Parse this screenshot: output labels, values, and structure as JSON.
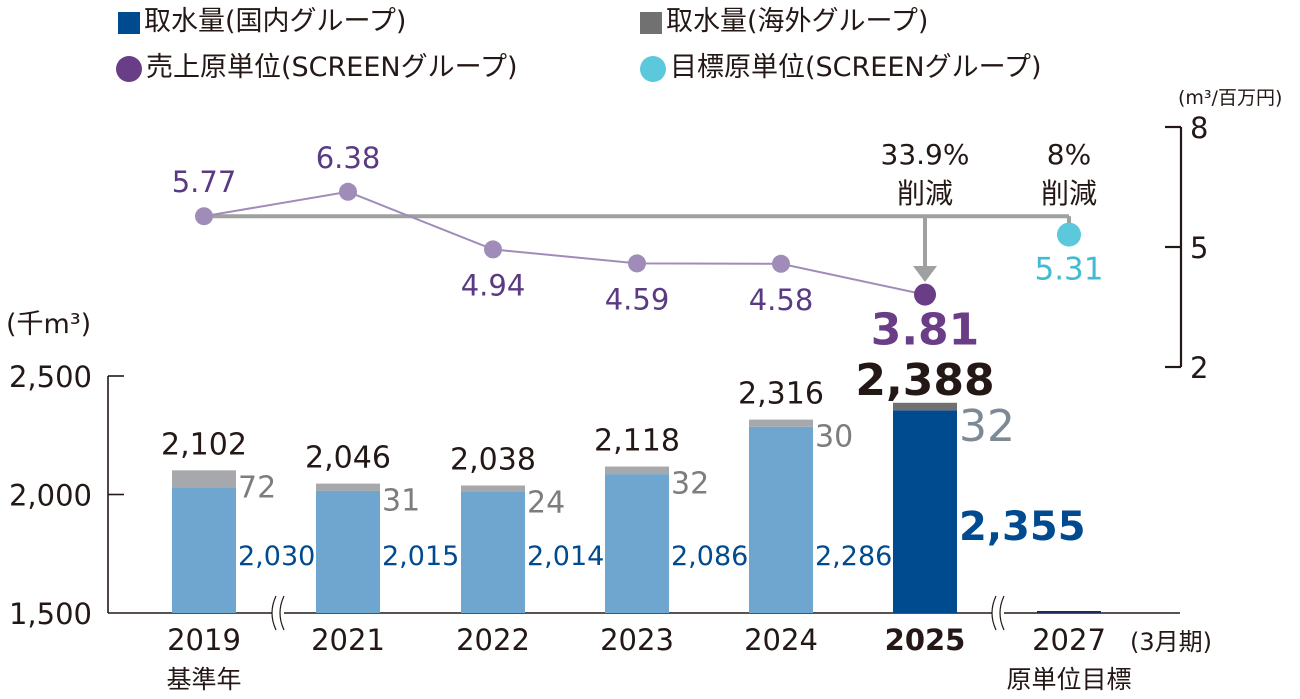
{
  "legend": [
    {
      "label": "取水量(国内グループ)",
      "color": "#004a8f",
      "shape": "square"
    },
    {
      "label": "取水量(海外グループ)",
      "color": "#727171",
      "shape": "square"
    },
    {
      "label": "売上原単位(SCREENグループ)",
      "color": "#6a3d87",
      "shape": "circle"
    },
    {
      "label": "目標原単位(SCREENグループ)",
      "color": "#5bc8dc",
      "shape": "circle"
    }
  ],
  "chart_data": {
    "type": "bar",
    "categories": [
      "2019",
      "2021",
      "2022",
      "2023",
      "2024",
      "2025",
      "2027"
    ],
    "category_sublabels": [
      "基準年",
      "",
      "",
      "",
      "",
      "",
      "原単位目標"
    ],
    "highlight_category": "2025",
    "period_label": "(3月期)",
    "left_axis": {
      "unit_label": "(千m³)",
      "ylim": [
        1500,
        2500
      ],
      "ticks": [
        1500,
        2000,
        2500
      ],
      "tick_labels": [
        "1,500",
        "2,000",
        "2,500"
      ],
      "axis_break": true
    },
    "right_axis": {
      "unit_label": "(m³/百万円)",
      "ylim": [
        2,
        8
      ],
      "ticks": [
        2,
        5,
        8
      ],
      "tick_labels": [
        "2",
        "5",
        "8"
      ]
    },
    "series": [
      {
        "name": "取水量(国内グループ)",
        "kind": "stacked-bar",
        "axis": "left",
        "values": [
          2030,
          2015,
          2014,
          2086,
          2286,
          2355,
          null
        ],
        "labels": [
          "2,030",
          "2,015",
          "2,014",
          "2,086",
          "2,286",
          "2,355",
          ""
        ],
        "color": "#6fa6cf",
        "highlight_color": "#004a8f",
        "label_color": "#004a8f"
      },
      {
        "name": "取水量(海外グループ)",
        "kind": "stacked-bar",
        "axis": "left",
        "values": [
          72,
          31,
          24,
          32,
          30,
          32,
          null
        ],
        "labels": [
          "72",
          "31",
          "24",
          "32",
          "30",
          "32",
          ""
        ],
        "color": "#a7a8ab",
        "highlight_color": "#727171",
        "label_color": "#7d7d7d"
      },
      {
        "name": "売上原単位(SCREENグループ)",
        "kind": "line",
        "axis": "right",
        "values": [
          5.77,
          6.38,
          4.94,
          4.59,
          4.58,
          3.81,
          null
        ],
        "labels": [
          "5.77",
          "6.38",
          "4.94",
          "4.59",
          "4.58",
          "3.81",
          ""
        ],
        "color": "#a08cb8",
        "highlight_color": "#6a3d87",
        "label_color": "#5a3a82"
      },
      {
        "name": "目標原単位(SCREENグループ)",
        "kind": "point",
        "axis": "right",
        "values": [
          null,
          null,
          null,
          null,
          null,
          null,
          5.31
        ],
        "labels": [
          "",
          "",
          "",
          "",
          "",
          "",
          "5.31"
        ],
        "color": "#5bc8dc",
        "label_color": "#3fbcd3"
      }
    ],
    "totals": [
      2102,
      2046,
      2038,
      2118,
      2316,
      2388,
      null
    ],
    "total_labels": [
      "2,102",
      "2,046",
      "2,038",
      "2,118",
      "2,316",
      "2,388",
      ""
    ],
    "annotations": [
      {
        "text": [
          "33.9%",
          "削減"
        ],
        "target": "2025",
        "description": "reduction from 2019 baseline"
      },
      {
        "text": [
          "8%",
          "削減"
        ],
        "target": "2027",
        "description": "target reduction"
      }
    ],
    "bracket_color": "#9fa0a0"
  }
}
